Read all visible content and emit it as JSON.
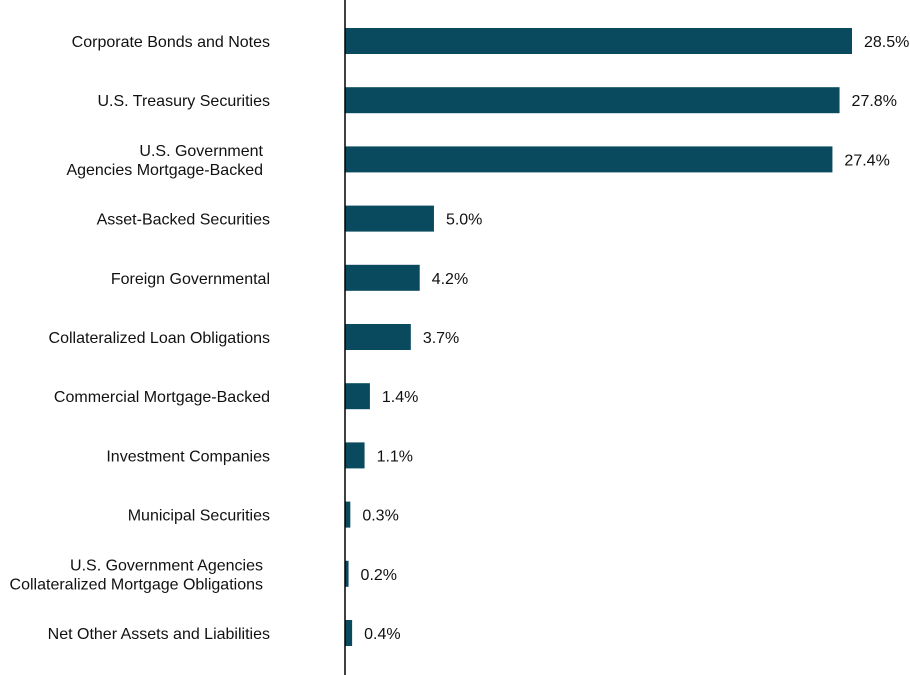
{
  "chart_data": {
    "type": "bar",
    "orientation": "horizontal",
    "title": "",
    "xlabel": "",
    "ylabel": "",
    "grid": false,
    "legend": "none",
    "value_suffix": "%",
    "bar_color": "#0a4a5e",
    "axis_color": "#000000",
    "categories": [
      [
        "Corporate Bonds and Notes"
      ],
      [
        "U.S. Treasury Securities"
      ],
      [
        "U.S. Government",
        "Agencies Mortgage-Backed"
      ],
      [
        "Asset-Backed Securities"
      ],
      [
        "Foreign Governmental"
      ],
      [
        "Collateralized Loan Obligations"
      ],
      [
        "Commercial Mortgage-Backed"
      ],
      [
        "Investment Companies"
      ],
      [
        "Municipal Securities"
      ],
      [
        "U.S. Government Agencies",
        "Collateralized Mortgage Obligations"
      ],
      [
        "Net Other Assets and Liabilities"
      ]
    ],
    "values": [
      28.5,
      27.8,
      27.4,
      5.0,
      4.2,
      3.7,
      1.4,
      1.1,
      0.3,
      0.2,
      0.4
    ],
    "value_labels": [
      "28.5%",
      "27.8%",
      "27.4%",
      "5.0%",
      "4.2%",
      "3.7%",
      "1.4%",
      "1.1%",
      "0.3%",
      "0.2%",
      "0.4%"
    ],
    "xlim": [
      0,
      28.5
    ]
  }
}
